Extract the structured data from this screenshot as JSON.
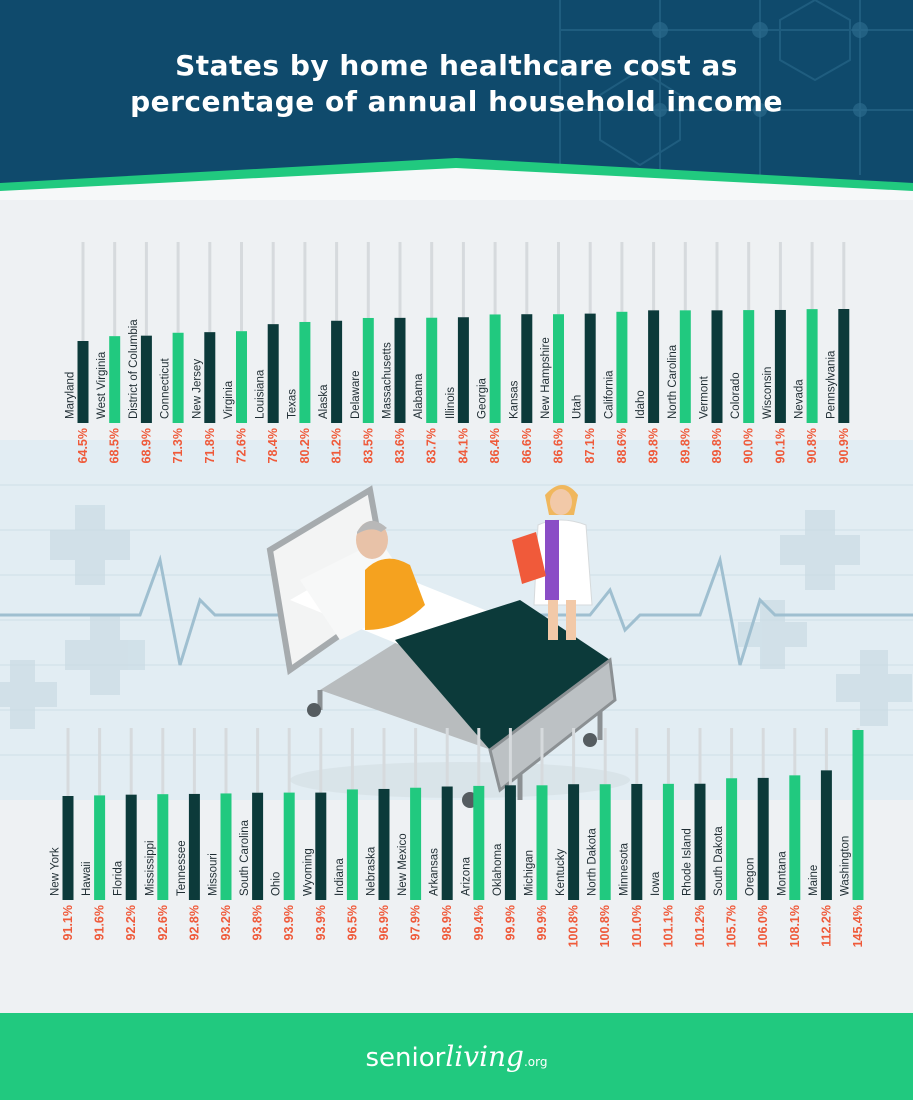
{
  "header": {
    "title_line1": "States by home healthcare cost as",
    "title_line2": "percentage of annual household income"
  },
  "brand": {
    "part1": "senior",
    "part2": "living",
    "part3": ".org"
  },
  "colors": {
    "header_bg": "#0f4a6c",
    "header_stripe": "#21c97f",
    "bar_dark": "#0c3a3a",
    "bar_green": "#21c97f",
    "value_text": "#ef5a3a",
    "footer_bg": "#21c97f"
  },
  "chart_data": [
    {
      "type": "bar",
      "orientation": "vertical",
      "unit": "%",
      "categories": [
        "Maryland",
        "West Virginia",
        "District of Columbia",
        "Connecticut",
        "New Jersey",
        "Virginia",
        "Louisiana",
        "Texas",
        "Alaska",
        "Delaware",
        "Massachusetts",
        "Alabama",
        "Illinois",
        "Georgia",
        "Kansas",
        "New Hampshire",
        "Utah",
        "California",
        "Idaho",
        "North Carolina",
        "Vermont",
        "Colorado",
        "Wisconsin",
        "Nevada",
        "Pennsylvania"
      ],
      "values": [
        64.5,
        68.5,
        68.9,
        71.3,
        71.8,
        72.6,
        78.4,
        80.2,
        81.2,
        83.5,
        83.6,
        83.7,
        84.1,
        86.4,
        86.6,
        86.6,
        87.1,
        88.6,
        89.8,
        89.8,
        89.8,
        90.0,
        90.1,
        90.8,
        90.9
      ],
      "labels": [
        "64.5%",
        "68.5%",
        "68.9%",
        "71.3%",
        "71.8%",
        "72.6%",
        "78.4%",
        "80.2%",
        "81.2%",
        "83.5%",
        "83.6%",
        "83.7%",
        "84.1%",
        "86.4%",
        "86.6%",
        "86.6%",
        "87.1%",
        "88.6%",
        "89.8%",
        "89.8%",
        "89.8%",
        "90.0%",
        "90.1%",
        "90.8%",
        "90.9%"
      ]
    },
    {
      "type": "bar",
      "orientation": "vertical",
      "unit": "%",
      "categories": [
        "New York",
        "Hawaii",
        "Florida",
        "Mississippi",
        "Tennessee",
        "Missouri",
        "South Carolina",
        "Ohio",
        "Wyoming",
        "Indiana",
        "Nebraska",
        "New Mexico",
        "Arkansas",
        "Arizona",
        "Oklahoma",
        "Michigan",
        "Kentucky",
        "North Dakota",
        "Minnesota",
        "Iowa",
        "Rhode Island",
        "South Dakota",
        "Oregon",
        "Montana",
        "Maine",
        "Washington"
      ],
      "values": [
        91.1,
        91.6,
        92.2,
        92.6,
        92.8,
        93.2,
        93.8,
        93.9,
        93.9,
        96.5,
        96.9,
        97.9,
        98.9,
        99.4,
        99.9,
        99.9,
        100.8,
        100.8,
        101.0,
        101.1,
        101.2,
        105.7,
        106.0,
        108.1,
        112.2,
        145.4
      ],
      "labels": [
        "91.1%",
        "91.6%",
        "92.2%",
        "92.6%",
        "92.8%",
        "93.2%",
        "93.8%",
        "93.9%",
        "93.9%",
        "96.5%",
        "96.9%",
        "97.9%",
        "98.9%",
        "99.4%",
        "99.9%",
        "99.9%",
        "100.8%",
        "100.8%",
        "101.0%",
        "101.1%",
        "101.2%",
        "105.7%",
        "106.0%",
        "108.1%",
        "112.2%",
        "145.4%"
      ]
    }
  ]
}
